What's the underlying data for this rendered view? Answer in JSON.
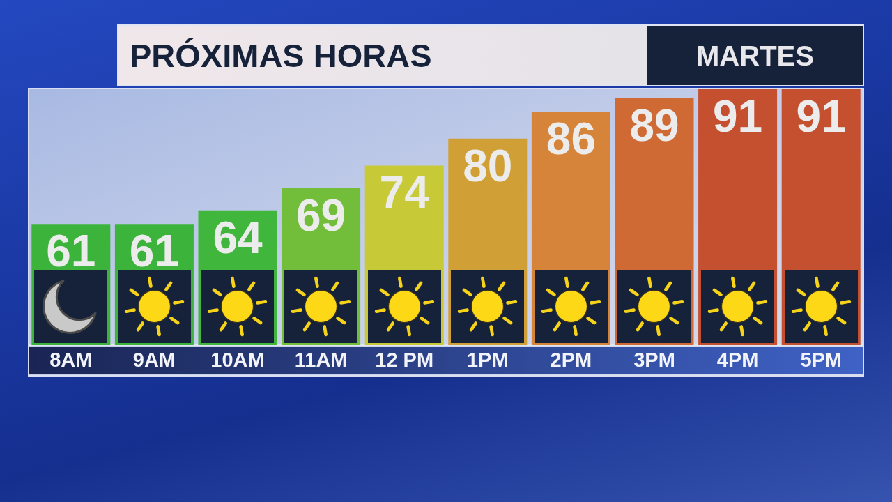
{
  "chart_data": {
    "type": "bar",
    "title": "PRÓXIMAS HORAS",
    "subtitle": "MARTES",
    "categories": [
      "8AM",
      "9AM",
      "10AM",
      "11AM",
      "12 PM",
      "1PM",
      "2PM",
      "3PM",
      "4PM",
      "5PM"
    ],
    "values": [
      61,
      61,
      64,
      69,
      74,
      80,
      86,
      89,
      91,
      91
    ],
    "colors": [
      "#3cb43c",
      "#3cb43c",
      "#41b63c",
      "#72be3a",
      "#c8c936",
      "#d0a037",
      "#d6843a",
      "#d06a35",
      "#c5502f",
      "#c5502f"
    ],
    "ylim": [
      34,
      91
    ],
    "data_labels": true,
    "tick_labels": "x"
  }
}
